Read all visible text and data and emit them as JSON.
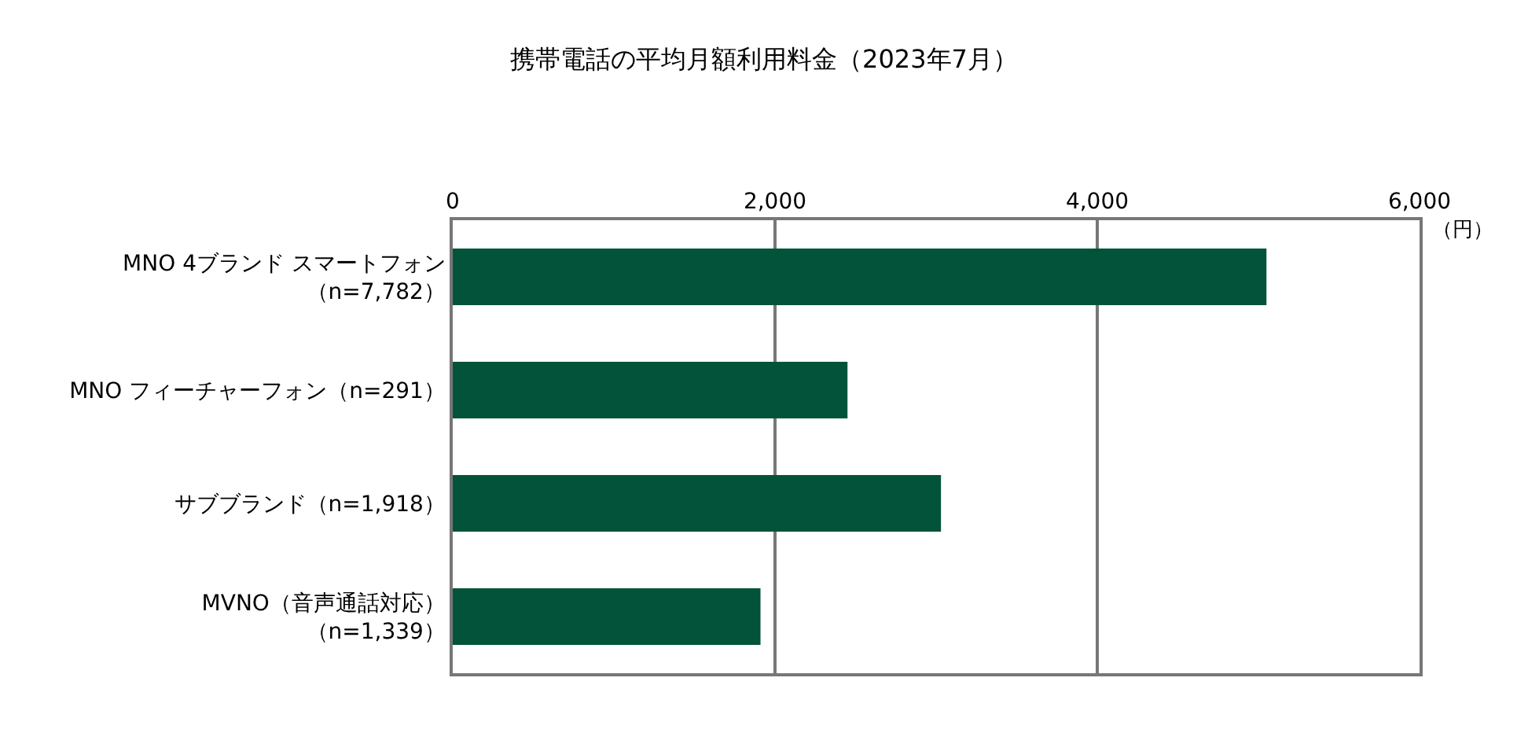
{
  "chart_data": {
    "type": "bar",
    "orientation": "horizontal",
    "title": "携帯電話の平均月額利用料金（2023年7月）",
    "xlabel": "（円）",
    "categories": [
      "MNO 4ブランド スマートフォン（n=7,782）",
      "MNO フィーチャーフォン（n=291）",
      "サブブランド（n=1,918）",
      "MVNO（音声通話対応）（n=1,339）"
    ],
    "values": [
      5050,
      2450,
      3030,
      1910
    ],
    "color": "#03533a",
    "xlim": [
      0,
      6000
    ],
    "xticks": [
      0,
      {
        "value": 2000,
        "label": "2,000"
      },
      {
        "value": 4000,
        "label": "4,000"
      },
      {
        "value": 6000,
        "label": "6,000"
      }
    ],
    "grid": "x"
  }
}
